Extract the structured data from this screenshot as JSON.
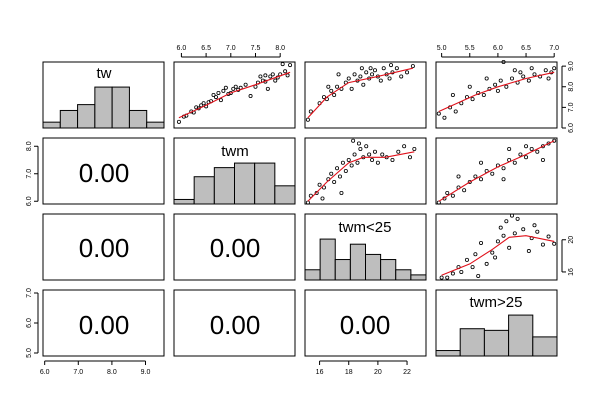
{
  "chart_data": {
    "type": "scatter-matrix",
    "variables": [
      "tw",
      "twm",
      "twm<25",
      "twm>25"
    ],
    "correlation_text": "0.00",
    "scales": [
      {
        "ticks": [
          6.0,
          7.0,
          8.0,
          9.0
        ],
        "labels": [
          "6.0",
          "7.0",
          "8.0",
          "9.0"
        ]
      },
      {
        "ticks": [
          6.0,
          6.5,
          7.0,
          7.5,
          8.0
        ],
        "labels": [
          "6.0",
          "6.5",
          "7.0",
          "7.5",
          "8.0"
        ]
      },
      {
        "ticks": [
          16,
          18,
          20,
          22
        ],
        "labels": [
          "16",
          "18",
          "20",
          "22"
        ]
      },
      {
        "ticks": [
          5.0,
          5.5,
          6.0,
          6.5,
          7.0
        ],
        "labels": [
          "5.0",
          "5.5",
          "6.0",
          "6.5",
          "7.0"
        ]
      }
    ],
    "row_scales": [
      {
        "ticks": [
          6.0,
          7.0,
          8.0,
          9.0
        ],
        "labels": [
          "6.0",
          "7.0",
          "8.0",
          "9.0"
        ]
      },
      {
        "ticks": [
          6.0,
          7.0,
          8.0
        ],
        "labels": [
          "6.0",
          "7.0",
          "8.0"
        ]
      },
      {
        "ticks": [
          16,
          20
        ],
        "labels": [
          "16",
          "20"
        ]
      },
      {
        "ticks": [
          5.0,
          6.0,
          7.0
        ],
        "labels": [
          "5.0",
          "6.0",
          "7.0"
        ]
      }
    ],
    "histograms": [
      {
        "variable": "tw",
        "values": [
          1,
          3,
          4,
          7,
          7,
          3,
          1
        ]
      },
      {
        "variable": "twm",
        "values": [
          1,
          6,
          8,
          9,
          9,
          4
        ]
      },
      {
        "variable": "twm<25",
        "values": [
          2,
          8,
          4,
          7,
          5,
          4,
          2,
          1
        ]
      },
      {
        "variable": "twm>25",
        "values": [
          1,
          5,
          4.7,
          7.5,
          3.5
        ]
      }
    ],
    "scatter": [
      {
        "x_var": "twm",
        "y_var": "tw",
        "points": [
          [
            5.95,
            6.3
          ],
          [
            6.05,
            6.55
          ],
          [
            6.1,
            6.6
          ],
          [
            6.2,
            6.8
          ],
          [
            6.25,
            6.75
          ],
          [
            6.3,
            7.0
          ],
          [
            6.35,
            6.95
          ],
          [
            6.4,
            7.1
          ],
          [
            6.45,
            7.2
          ],
          [
            6.5,
            7.05
          ],
          [
            6.55,
            7.25
          ],
          [
            6.6,
            7.3
          ],
          [
            6.65,
            7.6
          ],
          [
            6.7,
            7.5
          ],
          [
            6.75,
            7.7
          ],
          [
            6.8,
            7.35
          ],
          [
            6.85,
            7.8
          ],
          [
            6.9,
            7.95
          ],
          [
            6.95,
            7.65
          ],
          [
            7.0,
            7.7
          ],
          [
            7.05,
            7.9
          ],
          [
            7.1,
            8.0
          ],
          [
            7.15,
            7.85
          ],
          [
            7.2,
            7.95
          ],
          [
            7.3,
            8.1
          ],
          [
            7.4,
            7.55
          ],
          [
            7.5,
            8.0
          ],
          [
            7.55,
            8.2
          ],
          [
            7.6,
            8.5
          ],
          [
            7.65,
            8.3
          ],
          [
            7.7,
            8.55
          ],
          [
            7.75,
            7.9
          ],
          [
            7.8,
            8.5
          ],
          [
            7.85,
            8.6
          ],
          [
            7.9,
            8.3
          ],
          [
            7.95,
            8.45
          ],
          [
            8.0,
            8.6
          ],
          [
            8.05,
            9.1
          ],
          [
            8.1,
            8.75
          ],
          [
            8.15,
            8.55
          ],
          [
            8.2,
            9.05
          ],
          [
            7.7,
            8.25
          ]
        ]
      },
      {
        "x_var": "twm<25",
        "y_var": "tw",
        "points": [
          [
            15.2,
            6.4
          ],
          [
            15.4,
            6.8
          ],
          [
            16.0,
            7.2
          ],
          [
            16.3,
            7.5
          ],
          [
            16.5,
            7.4
          ],
          [
            16.8,
            7.8
          ],
          [
            17.0,
            7.6
          ],
          [
            17.2,
            8.0
          ],
          [
            17.5,
            7.9
          ],
          [
            17.8,
            8.2
          ],
          [
            18.0,
            8.4
          ],
          [
            18.2,
            7.9
          ],
          [
            18.4,
            8.6
          ],
          [
            18.6,
            8.3
          ],
          [
            18.8,
            8.5
          ],
          [
            19.0,
            8.1
          ],
          [
            19.2,
            8.7
          ],
          [
            19.4,
            8.4
          ],
          [
            19.6,
            8.6
          ],
          [
            19.8,
            8.8
          ],
          [
            20.0,
            8.5
          ],
          [
            20.2,
            8.3
          ],
          [
            20.4,
            8.9
          ],
          [
            20.6,
            8.6
          ],
          [
            20.8,
            8.4
          ],
          [
            21.0,
            8.7
          ],
          [
            21.3,
            8.9
          ],
          [
            21.6,
            8.5
          ],
          [
            22.0,
            8.7
          ],
          [
            22.4,
            9.0
          ],
          [
            17.3,
            8.6
          ],
          [
            18.9,
            8.9
          ],
          [
            16.6,
            8.0
          ],
          [
            20.9,
            9.05
          ],
          [
            19.5,
            8.9
          ]
        ]
      },
      {
        "x_var": "twm>25",
        "y_var": "tw",
        "points": [
          [
            4.95,
            6.7
          ],
          [
            5.05,
            6.5
          ],
          [
            5.15,
            7.0
          ],
          [
            5.25,
            6.8
          ],
          [
            5.35,
            7.2
          ],
          [
            5.45,
            7.5
          ],
          [
            5.55,
            7.4
          ],
          [
            5.65,
            7.7
          ],
          [
            5.75,
            7.6
          ],
          [
            5.85,
            7.9
          ],
          [
            5.95,
            8.1
          ],
          [
            6.0,
            7.8
          ],
          [
            6.05,
            8.3
          ],
          [
            6.15,
            8.0
          ],
          [
            6.25,
            8.4
          ],
          [
            6.35,
            8.2
          ],
          [
            6.45,
            8.5
          ],
          [
            6.55,
            8.3
          ],
          [
            6.65,
            8.6
          ],
          [
            6.75,
            8.5
          ],
          [
            6.85,
            8.8
          ],
          [
            6.95,
            8.7
          ],
          [
            5.5,
            8.0
          ],
          [
            6.1,
            9.2
          ],
          [
            6.3,
            8.8
          ],
          [
            6.6,
            8.9
          ],
          [
            5.2,
            7.6
          ],
          [
            5.8,
            8.4
          ],
          [
            6.9,
            8.4
          ],
          [
            6.4,
            8.7
          ],
          [
            7.0,
            8.9
          ]
        ]
      },
      {
        "x_var": "twm<25",
        "y_var": "twm",
        "points": [
          [
            15.2,
            5.95
          ],
          [
            15.4,
            6.2
          ],
          [
            15.8,
            6.3
          ],
          [
            16.0,
            6.6
          ],
          [
            16.3,
            6.5
          ],
          [
            16.6,
            6.8
          ],
          [
            16.8,
            7.0
          ],
          [
            17.0,
            6.7
          ],
          [
            17.2,
            7.2
          ],
          [
            17.4,
            6.9
          ],
          [
            17.6,
            7.4
          ],
          [
            17.8,
            7.1
          ],
          [
            18.0,
            7.5
          ],
          [
            18.2,
            7.3
          ],
          [
            18.4,
            7.7
          ],
          [
            18.6,
            7.4
          ],
          [
            18.8,
            7.9
          ],
          [
            19.0,
            7.6
          ],
          [
            19.2,
            8.0
          ],
          [
            19.4,
            7.7
          ],
          [
            19.6,
            7.5
          ],
          [
            19.8,
            7.8
          ],
          [
            20.0,
            7.4
          ],
          [
            20.3,
            7.7
          ],
          [
            20.6,
            7.6
          ],
          [
            21.0,
            7.5
          ],
          [
            21.4,
            7.8
          ],
          [
            21.8,
            8.0
          ],
          [
            22.2,
            7.6
          ],
          [
            22.5,
            7.9
          ],
          [
            18.3,
            8.2
          ],
          [
            18.7,
            8.1
          ],
          [
            17.5,
            6.3
          ],
          [
            16.2,
            6.1
          ]
        ]
      },
      {
        "x_var": "twm>25",
        "y_var": "twm",
        "points": [
          [
            4.95,
            5.95
          ],
          [
            5.05,
            6.1
          ],
          [
            5.1,
            6.3
          ],
          [
            5.2,
            6.2
          ],
          [
            5.3,
            6.5
          ],
          [
            5.4,
            6.4
          ],
          [
            5.5,
            6.7
          ],
          [
            5.6,
            6.9
          ],
          [
            5.7,
            6.8
          ],
          [
            5.8,
            7.1
          ],
          [
            5.9,
            7.0
          ],
          [
            6.0,
            7.3
          ],
          [
            6.1,
            7.2
          ],
          [
            6.2,
            7.5
          ],
          [
            6.3,
            7.4
          ],
          [
            6.4,
            7.7
          ],
          [
            6.5,
            7.6
          ],
          [
            6.6,
            7.9
          ],
          [
            6.7,
            7.8
          ],
          [
            6.8,
            8.0
          ],
          [
            6.9,
            8.1
          ],
          [
            7.0,
            8.2
          ],
          [
            5.7,
            7.4
          ],
          [
            6.2,
            7.9
          ],
          [
            6.5,
            8.0
          ],
          [
            5.3,
            6.9
          ],
          [
            6.8,
            7.5
          ],
          [
            6.1,
            6.8
          ]
        ]
      },
      {
        "x_var": "twm>25",
        "y_var": "twm<25",
        "points": [
          [
            5.0,
            15.3
          ],
          [
            5.1,
            15.3
          ],
          [
            5.2,
            15.8
          ],
          [
            5.3,
            16.6
          ],
          [
            5.35,
            16.0
          ],
          [
            5.45,
            17.5
          ],
          [
            5.55,
            16.6
          ],
          [
            5.6,
            18.2
          ],
          [
            5.7,
            19.6
          ],
          [
            5.8,
            17.0
          ],
          [
            5.9,
            18.4
          ],
          [
            6.0,
            19.8
          ],
          [
            6.05,
            21.5
          ],
          [
            6.1,
            20.5
          ],
          [
            6.15,
            22.3
          ],
          [
            6.2,
            19.0
          ],
          [
            6.3,
            20.8
          ],
          [
            6.35,
            22.6
          ],
          [
            6.45,
            21.3
          ],
          [
            6.55,
            18.6
          ],
          [
            6.6,
            20.2
          ],
          [
            6.7,
            21.0
          ],
          [
            6.8,
            19.4
          ],
          [
            6.9,
            20.4
          ],
          [
            7.0,
            19.5
          ],
          [
            5.65,
            15.5
          ],
          [
            6.25,
            23.0
          ],
          [
            6.65,
            21.8
          ],
          [
            5.95,
            17.8
          ]
        ]
      }
    ],
    "smooth_lines": [
      {
        "x_var": "twm",
        "y_var": "tw",
        "points": [
          [
            5.95,
            6.5
          ],
          [
            6.5,
            7.1
          ],
          [
            7.0,
            7.7
          ],
          [
            7.5,
            8.1
          ],
          [
            8.2,
            8.7
          ]
        ]
      },
      {
        "x_var": "twm<25",
        "y_var": "tw",
        "points": [
          [
            15.2,
            6.5
          ],
          [
            16.5,
            7.5
          ],
          [
            18.0,
            8.2
          ],
          [
            20.0,
            8.5
          ],
          [
            22.4,
            8.9
          ]
        ]
      },
      {
        "x_var": "twm>25",
        "y_var": "tw",
        "points": [
          [
            4.95,
            6.8
          ],
          [
            5.6,
            7.6
          ],
          [
            6.0,
            8.0
          ],
          [
            6.5,
            8.4
          ],
          [
            7.0,
            8.7
          ]
        ]
      },
      {
        "x_var": "twm<25",
        "y_var": "twm",
        "points": [
          [
            15.2,
            6.0
          ],
          [
            16.5,
            6.7
          ],
          [
            18.0,
            7.4
          ],
          [
            19.0,
            7.6
          ],
          [
            20.5,
            7.6
          ],
          [
            22.5,
            7.8
          ]
        ]
      },
      {
        "x_var": "twm>25",
        "y_var": "twm",
        "points": [
          [
            4.95,
            6.0
          ],
          [
            5.5,
            6.7
          ],
          [
            6.0,
            7.25
          ],
          [
            6.5,
            7.7
          ],
          [
            7.0,
            8.2
          ]
        ]
      },
      {
        "x_var": "twm>25",
        "y_var": "twm<25",
        "points": [
          [
            5.0,
            15.6
          ],
          [
            5.5,
            17.0
          ],
          [
            5.9,
            18.8
          ],
          [
            6.2,
            20.3
          ],
          [
            6.5,
            20.5
          ],
          [
            7.0,
            19.8
          ]
        ]
      }
    ],
    "grid": false,
    "legend": "none"
  }
}
